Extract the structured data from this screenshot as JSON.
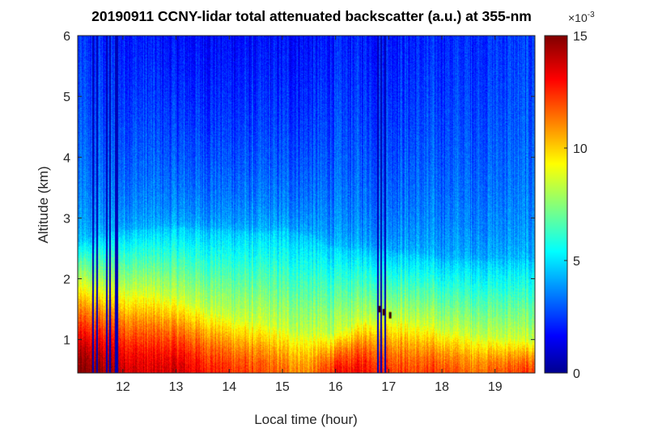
{
  "chart_data": {
    "type": "heatmap",
    "title": "20190911 CCNY-lidar total attenuated backscatter (a.u.) at 355-nm",
    "xlabel": "Local time (hour)",
    "ylabel": "Altitude (km)",
    "xlim": [
      11.15,
      19.75
    ],
    "ylim": [
      0.45,
      6
    ],
    "xticks": [
      12,
      13,
      14,
      15,
      16,
      17,
      18,
      19
    ],
    "xtick_labels": [
      "12",
      "13",
      "14",
      "15",
      "16",
      "17",
      "18",
      "19"
    ],
    "yticks": [
      1,
      2,
      3,
      4,
      5,
      6
    ],
    "ytick_labels": [
      "1",
      "2",
      "3",
      "4",
      "5",
      "6"
    ],
    "colormap": "jet",
    "colorbar": {
      "range": [
        0,
        15
      ],
      "ticks": [
        0,
        5,
        10,
        15
      ],
      "tick_labels": [
        "0",
        "5",
        "10",
        "15"
      ],
      "multiplier_base": "×10",
      "multiplier_exponent": "-3"
    },
    "boundary_layer_profile": {
      "time": [
        11.15,
        11.5,
        12.0,
        12.5,
        13.0,
        13.5,
        14.0,
        14.5,
        15.0,
        15.5,
        16.0,
        16.5,
        17.0,
        17.5,
        18.0,
        18.5,
        19.0,
        19.75
      ],
      "top_km": [
        1.95,
        1.9,
        1.85,
        1.8,
        1.7,
        1.55,
        1.4,
        1.3,
        1.2,
        1.1,
        1.1,
        1.35,
        1.4,
        1.3,
        1.2,
        1.1,
        1.05,
        1.0
      ],
      "surface_value": [
        14.8,
        14.8,
        14.0,
        13.5,
        13.8,
        13.0,
        12.5,
        12.0,
        11.5,
        11.0,
        12.8,
        13.2,
        12.5,
        12.0,
        12.2,
        11.5,
        11.8,
        12.3
      ],
      "aloft_layer_top_km": [
        2.6,
        2.7,
        2.8,
        2.8,
        2.85,
        2.8,
        2.8,
        2.75,
        2.8,
        2.7,
        2.5,
        2.5,
        2.45,
        2.4,
        2.3,
        2.3,
        2.3,
        2.3
      ],
      "upper_troposphere_value": [
        2.5,
        2.5,
        2.3,
        2.2,
        2.0,
        2.0,
        2.0,
        1.9,
        2.0,
        2.0,
        2.2,
        2.3,
        2.3,
        2.3,
        2.4,
        2.5,
        2.6,
        2.7
      ]
    },
    "dropouts_hour": [
      11.42,
      11.5,
      11.68,
      11.74,
      11.85,
      11.88,
      16.78,
      16.84,
      16.92
    ],
    "cloud_detections": [
      {
        "time": 16.82,
        "altitude_km": 1.5
      },
      {
        "time": 16.9,
        "altitude_km": 1.45
      },
      {
        "time": 17.02,
        "altitude_km": 1.4
      }
    ]
  }
}
